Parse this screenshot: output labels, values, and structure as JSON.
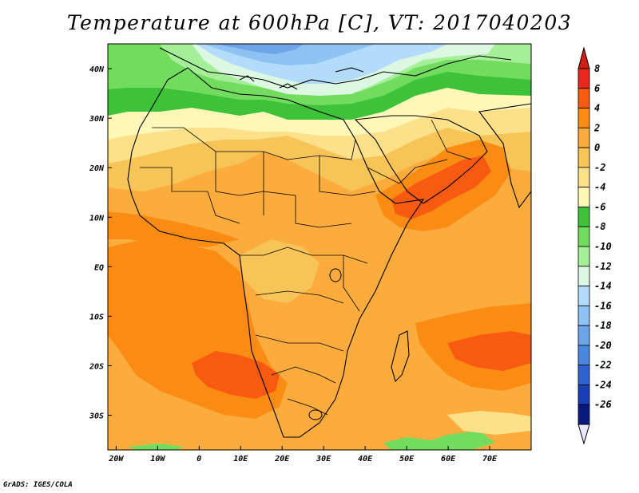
{
  "title": "Temperature at 600hPa [C], VT: 2017040203",
  "credit": "GrADS: IGES/COLA",
  "map": {
    "lon_range": [
      -22,
      80
    ],
    "lat_range": [
      -37,
      45
    ],
    "x_ticks": [
      "20W",
      "10W",
      "0",
      "10E",
      "20E",
      "30E",
      "40E",
      "50E",
      "60E",
      "70E"
    ],
    "y_ticks": [
      "40N",
      "30N",
      "20N",
      "10N",
      "EQ",
      "10S",
      "20S",
      "30S"
    ]
  },
  "colorbar": {
    "labels": [
      "8",
      "6",
      "4",
      "2",
      "0",
      "-2",
      "-4",
      "-6",
      "-8",
      "-10",
      "-12",
      "-14",
      "-16",
      "-18",
      "-20",
      "-22",
      "-24",
      "-26"
    ],
    "colors": [
      "#e8281f",
      "#f85a12",
      "#fa8c14",
      "#fcac3c",
      "#f7c458",
      "#fde08a",
      "#fff7b8",
      "#3ec23a",
      "#72dc5e",
      "#a4ef98",
      "#dcf8e2",
      "#b2dcfa",
      "#8ec2f2",
      "#6ea4ea",
      "#4a86e2",
      "#2e62d0",
      "#1840b4",
      "#0a1882"
    ],
    "top_arrow_color": "#d21e14",
    "bottom_arrow_color": "#e8e8ff"
  }
}
